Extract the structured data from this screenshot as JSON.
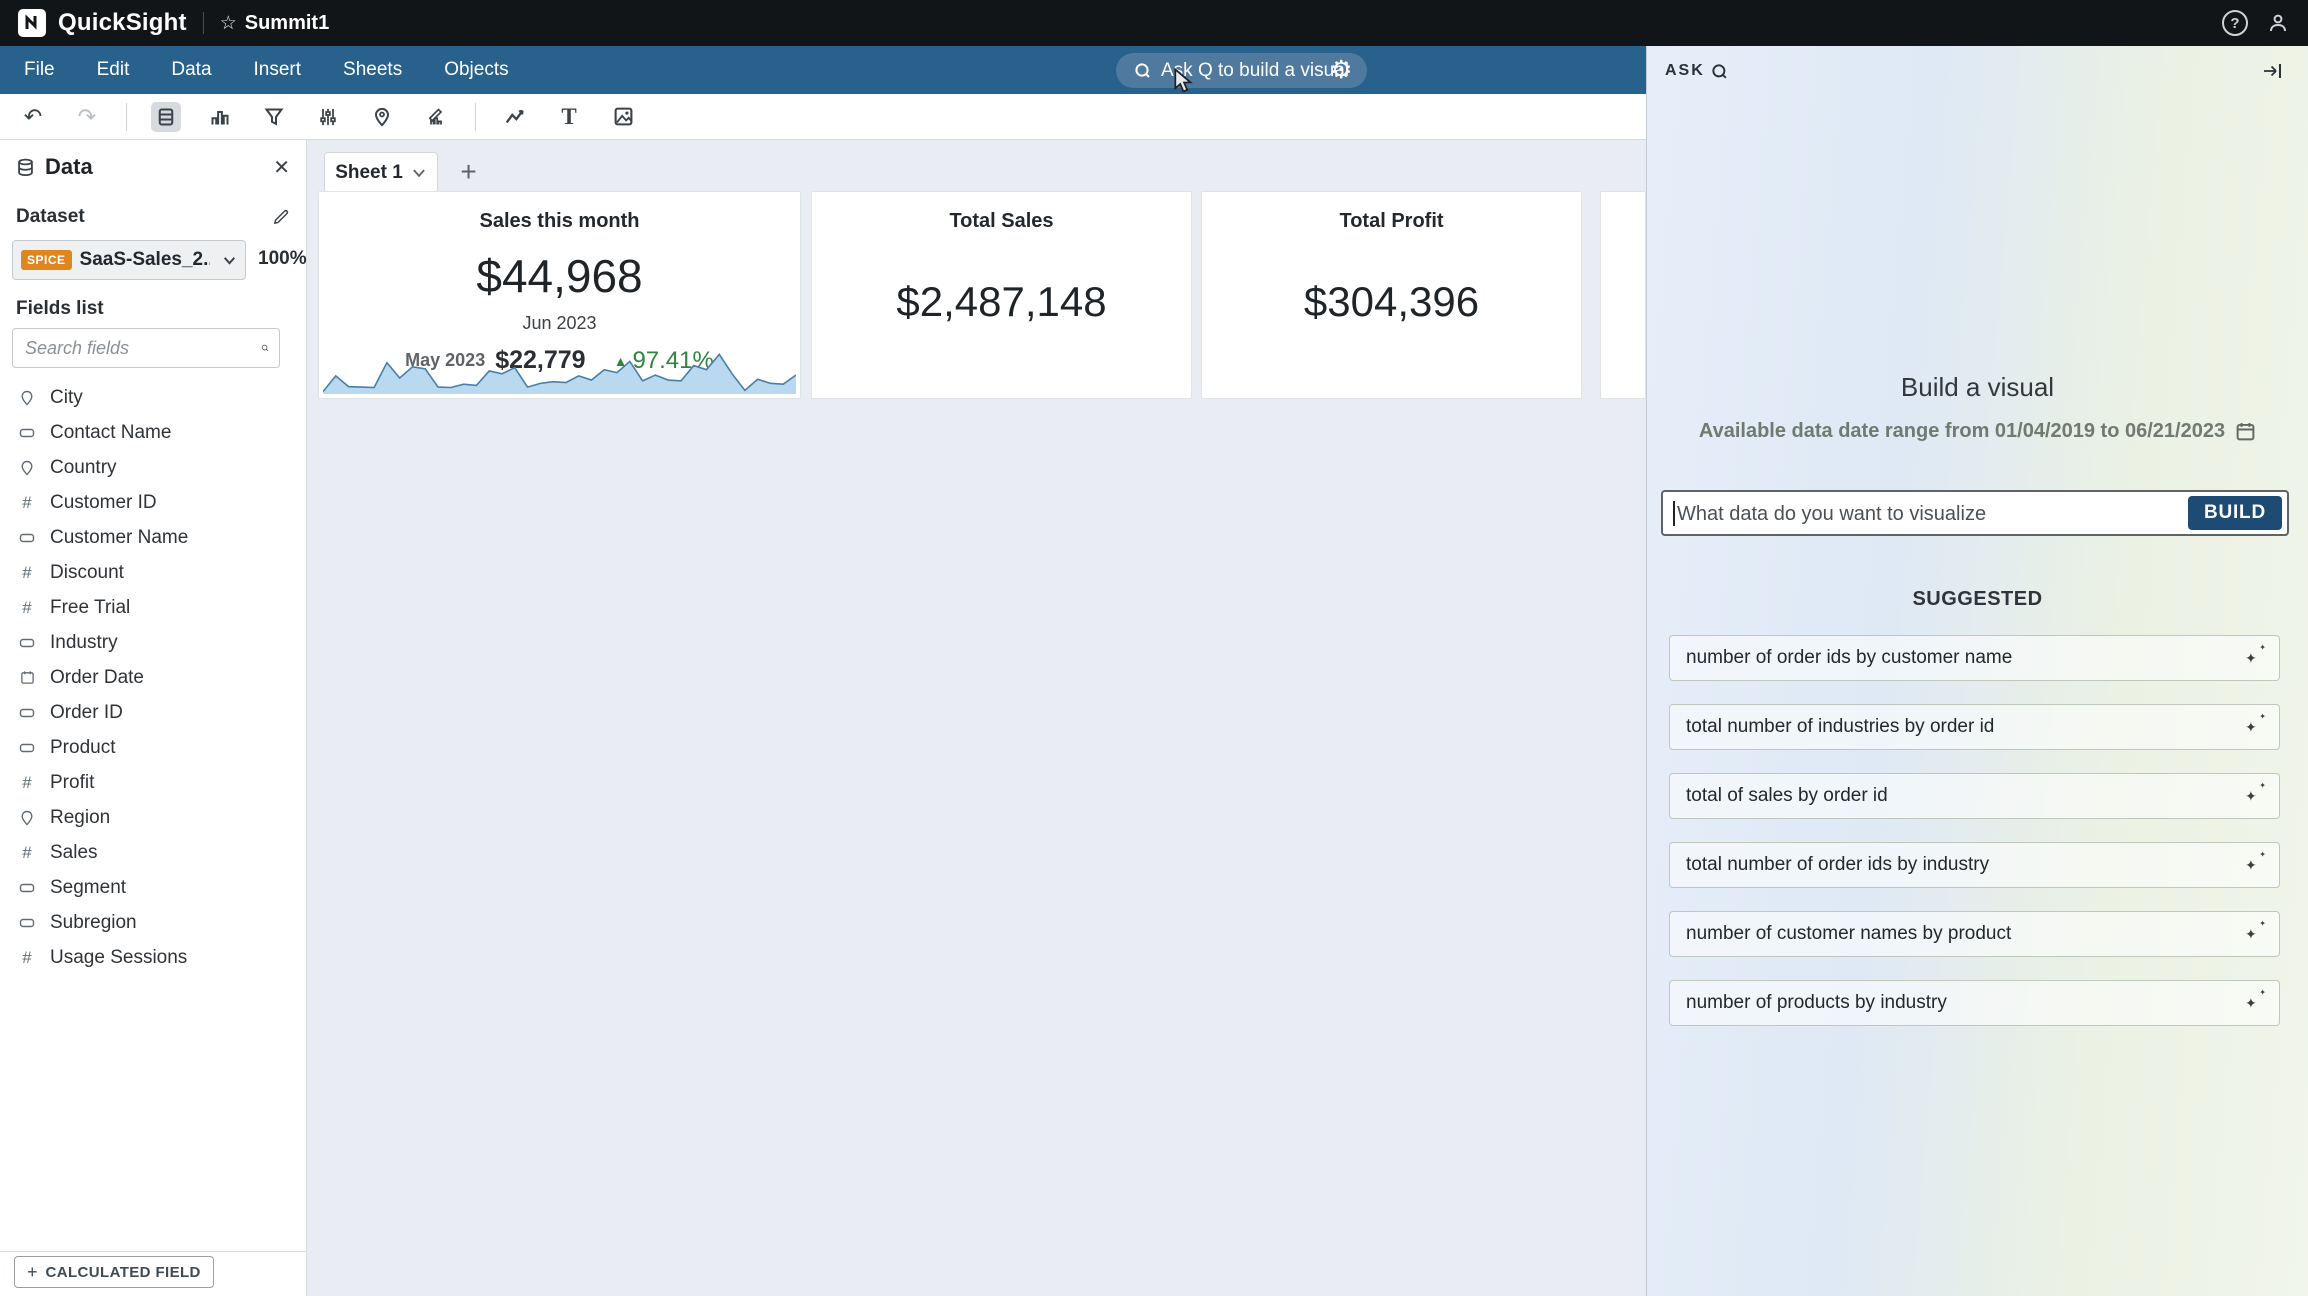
{
  "topbar": {
    "brand": "QuickSight",
    "doc_title": "Summit1"
  },
  "menubar": {
    "items": [
      "File",
      "Edit",
      "Data",
      "Insert",
      "Sheets",
      "Objects"
    ],
    "ask_q_label": "Ask Q to build a visual"
  },
  "data_panel": {
    "title": "Data",
    "dataset_label": "Dataset",
    "dataset_badge": "SPICE",
    "dataset_name": "SaaS-Sales_2...",
    "dataset_progress": "100%",
    "fields_list_label": "Fields list",
    "search_placeholder": "Search fields",
    "fields": [
      {
        "name": "City",
        "type": "geo"
      },
      {
        "name": "Contact Name",
        "type": "string"
      },
      {
        "name": "Country",
        "type": "geo"
      },
      {
        "name": "Customer ID",
        "type": "number"
      },
      {
        "name": "Customer Name",
        "type": "string"
      },
      {
        "name": "Discount",
        "type": "number"
      },
      {
        "name": "Free Trial",
        "type": "number"
      },
      {
        "name": "Industry",
        "type": "string"
      },
      {
        "name": "Order Date",
        "type": "date"
      },
      {
        "name": "Order ID",
        "type": "string"
      },
      {
        "name": "Product",
        "type": "string"
      },
      {
        "name": "Profit",
        "type": "number"
      },
      {
        "name": "Region",
        "type": "geo"
      },
      {
        "name": "Sales",
        "type": "number"
      },
      {
        "name": "Segment",
        "type": "string"
      },
      {
        "name": "Subregion",
        "type": "string"
      },
      {
        "name": "Usage Sessions",
        "type": "number"
      }
    ],
    "calculated_field_label": "CALCULATED FIELD"
  },
  "sheet_tabs": {
    "active": "Sheet 1"
  },
  "cards": {
    "sales_month": {
      "title": "Sales this month",
      "value": "$44,968",
      "period": "Jun 2023",
      "compare_label": "May 2023",
      "compare_value": "$22,779",
      "change": "97.41%",
      "sparkline": [
        2,
        40,
        14,
        13,
        12,
        72,
        35,
        62,
        57,
        13,
        12,
        20,
        17,
        52,
        45,
        60,
        13,
        22,
        26,
        24,
        40,
        30,
        55,
        48,
        75,
        28,
        42,
        30,
        28,
        65,
        55,
        92,
        45,
        5,
        32,
        22,
        20,
        42
      ]
    },
    "total_sales": {
      "title": "Total Sales",
      "value": "$2,487,148"
    },
    "total_profit": {
      "title": "Total Profit",
      "value": "$304,396"
    }
  },
  "ask_panel": {
    "header": "ASK",
    "title": "Build a visual",
    "date_range": "Available data date range from 01/04/2019 to 06/21/2023",
    "input_placeholder": "What data do you want to visualize",
    "build_label": "BUILD",
    "suggested_label": "SUGGESTED",
    "suggestions": [
      "number of order ids by customer name",
      "total number of industries by order id",
      "total of sales by order id",
      "total number of order ids by industry",
      "number of customer names by product",
      "number of products by industry"
    ]
  },
  "colors": {
    "topbar": "#121517",
    "menubar": "#28618c",
    "spice_badge": "#e0861f",
    "build_button": "#1d4b73",
    "positive_green": "#2f8540",
    "sparkline_line": "#4a7fa6",
    "sparkline_fill": "#b8d9ef",
    "canvas_bg": "#e9edf3"
  }
}
